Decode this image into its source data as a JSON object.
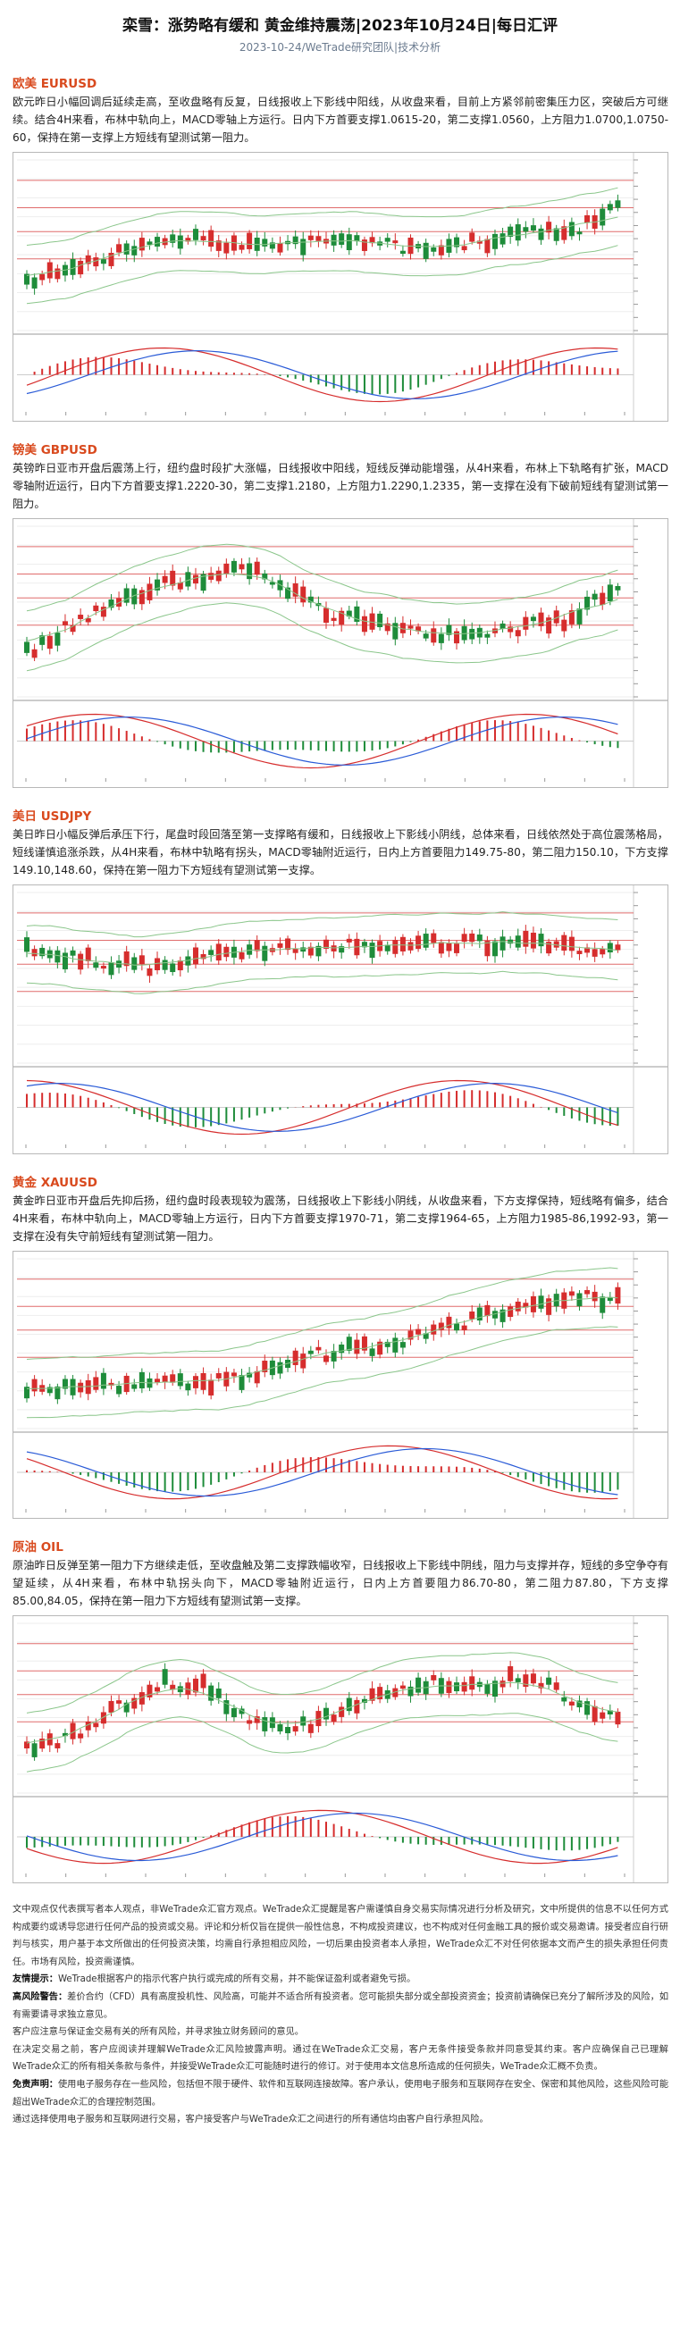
{
  "header": {
    "title": "栾雪：涨势略有缓和 黄金维持震荡|2023年10月24日|每日汇评",
    "subtitle": "2023-10-24/WeTrade研究团队|技术分析"
  },
  "sections": [
    {
      "heading": "欧美 EURUSD",
      "body": "欧元昨日小幅回调后延续走高，至收盘略有反复，日线报收上下影线中阳线，从收盘来看，目前上方紧邻前密集压力区，突破后方可继续。结合4H来看，布林中轨向上，MACD零轴上方运行。日内下方首要支撑1.0615-20，第二支撑1.0560，上方阻力1.0700,1.0750-60，保持在第一支撑上方短线有望测试第一阻力。"
    },
    {
      "heading": "镑美 GBPUSD",
      "body": "英镑昨日亚市开盘后震荡上行，纽约盘时段扩大涨幅，日线报收中阳线，短线反弹动能增强，从4H来看，布林上下轨略有扩张，MACD零轴附近运行，日内下方首要支撑1.2220-30，第二支撑1.2180，上方阻力1.2290,1.2335，第一支撑在没有下破前短线有望测试第一阻力。"
    },
    {
      "heading": "美日 USDJPY",
      "body": "美日昨日小幅反弹后承压下行，尾盘时段回落至第一支撑略有缓和，日线报收上下影线小阴线，总体来看，日线依然处于高位震荡格局，短线谨慎追涨杀跌，从4H来看，布林中轨略有拐头，MACD零轴附近运行，日内上方首要阻力149.75-80，第二阻力150.10，下方支撑149.10,148.60，保持在第一阻力下方短线有望测试第一支撑。"
    },
    {
      "heading": "黄金 XAUUSD",
      "body": "黄金昨日亚市开盘后先抑后扬，纽约盘时段表现较为震荡，日线报收上下影线小阴线，从收盘来看，下方支撑保持，短线略有偏多，结合4H来看，布林中轨向上，MACD零轴上方运行，日内下方首要支撑1970-71，第二支撑1964-65，上方阻力1985-86,1992-93，第一支撑在没有失守前短线有望测试第一阻力。"
    },
    {
      "heading": "原油 OIL",
      "body": "原油昨日反弹至第一阻力下方继续走低，至收盘触及第二支撑跌幅收窄，日线报收上下影线中阴线，阻力与支撑并存，短线的多空争夺有望延续，从4H来看，布林中轨拐头向下，MACD零轴附近运行，日内上方首要阻力86.70-80，第二阻力87.80，下方支撑85.00,84.05，保持在第一阻力下方短线有望测试第一支撑。"
    }
  ],
  "disclaimer": [
    {
      "label": "",
      "text": "文中观点仅代表撰写者本人观点，非WeTrade众汇官方观点。WeTrade众汇提醒是客户需谨慎自身交易实际情况进行分析及研究，文中所提供的信息不以任何方式构成要约或诱导您进行任何产品的投资或交易。评论和分析仅旨在提供一般性信息，不构成投资建议，也不构成对任何金融工具的报价或交易邀请。接受者应自行研判与核实，用户基于本文所做出的任何投资决策，均需自行承担相应风险，一切后果由投资者本人承担，WeTrade众汇不对任何依据本文而产生的损失承担任何责任。市场有风险，投资需谨慎。"
    },
    {
      "label": "友情提示：",
      "text": "WeTrade根据客户的指示代客户执行或完成的所有交易，并不能保证盈利或者避免亏损。"
    },
    {
      "label": "高风险警告：",
      "text": "差价合约（CFD）具有高度投机性、风险高，可能并不适合所有投资者。您可能损失部分或全部投资资金；投资前请确保已充分了解所涉及的风险，如有需要请寻求独立意见。"
    },
    {
      "label": "",
      "text": "客户应注意与保证金交易有关的所有风险，并寻求独立财务顾问的意见。"
    },
    {
      "label": "",
      "text": "在决定交易之前，客户应阅读并理解WeTrade众汇风险披露声明。通过在WeTrade众汇交易，客户无条件接受条款并同意受其约束。客户应确保自己已理解WeTrade众汇的所有相关条款与条件，并接受WeTrade众汇可能随时进行的修订。对于使用本文信息所造成的任何损失，WeTrade众汇概不负责。"
    },
    {
      "label": "免责声明：",
      "text": "使用电子服务存在一些风险，包括但不限于硬件、软件和互联网连接故障。客户承认，使用电子服务和互联网存在安全、保密和其他风险，这些风险可能超出WeTrade众汇的合理控制范围。"
    },
    {
      "label": "",
      "text": "通过选择使用电子服务和互联网进行交易，客户接受客户与WeTrade众汇之间进行的所有通信均由客户自行承担风险。"
    }
  ],
  "charts": [
    {
      "name": "eurusd-chart"
    },
    {
      "name": "gbpusd-chart"
    },
    {
      "name": "usdjpy-chart"
    },
    {
      "name": "xauusd-chart"
    },
    {
      "name": "oil-chart"
    }
  ],
  "colors": {
    "heading": "#d94a1e",
    "candle_up": "#d62d2d",
    "candle_down": "#1e8c3a",
    "level_line": "#e06c6c",
    "macd_fast": "#d62d2d",
    "macd_slow": "#2a5bd7",
    "band": "#8bc68b"
  }
}
